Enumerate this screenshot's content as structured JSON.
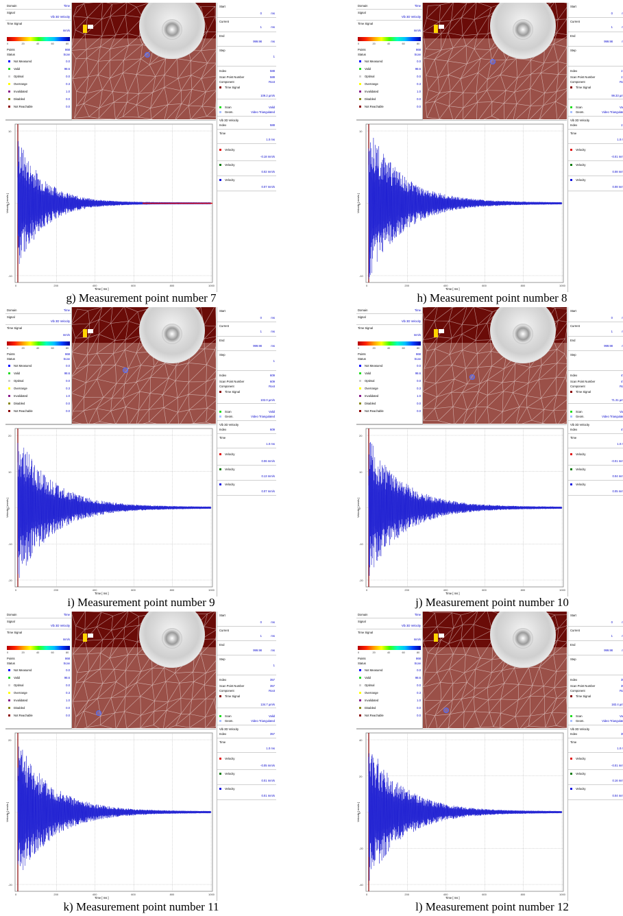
{
  "common": {
    "left": {
      "domain_label": "Domain",
      "domain_value": "Time",
      "signal_label": "Signal",
      "signal_value": "Vib 3D Velocity",
      "time_signal_label": "Time Signal",
      "unit": "mm/s",
      "colorbar_ticks": [
        "0",
        "20",
        "40",
        "60",
        "80"
      ],
      "points_label": "Points",
      "points_value": "868",
      "status_label": "Status",
      "status_value": "Scan",
      "status_rows": [
        {
          "label": "Not Measured",
          "value": "0.0",
          "color": "#0000ff"
        },
        {
          "label": "Valid",
          "value": "98.6",
          "color": "#22dd22"
        },
        {
          "label": "Optimal",
          "value": "0.0",
          "color": "#cccccc"
        },
        {
          "label": "Overrange",
          "value": "0.3",
          "color": "#ffff00"
        },
        {
          "label": "Invalidated",
          "value": "1.0",
          "color": "#8a1a8a"
        },
        {
          "label": "Disabled",
          "value": "0.0",
          "color": "#8a8a1a"
        },
        {
          "label": "Not Reachable",
          "value": "0.0",
          "color": "#8a0000"
        }
      ]
    },
    "side": {
      "start_label": "Start",
      "start_value": "0",
      "start_unit": "ms",
      "current_label": "Current",
      "current_value": "1",
      "current_unit": "ms",
      "end_label": "End",
      "end_value": "999.98",
      "end_unit": "ms",
      "step_label": "Step",
      "step_value": "1",
      "index_label": "Index",
      "scan_point_label": "Scan Point Number",
      "component_label": "Component",
      "component_value": "Root",
      "time_signal_label": "Time Signal",
      "scan_label": "Scan",
      "scan_value": "Valid",
      "geom_label": "Geom.",
      "geom_value": "Video Triangulated",
      "vib_label": "Vib 3D Velocity",
      "index2_label": "Index",
      "time_label": "Time",
      "time_value": "1.0 ms",
      "velocity_label": "Velocity"
    },
    "plot": {
      "ylabel": "Velocity [ mm/s ]",
      "xlabel": "Time [ ms ]",
      "xticks": [
        "0",
        "200",
        "400",
        "600",
        "800",
        "1000"
      ]
    }
  },
  "panels": [
    {
      "caption": "g) Measurement point number 7",
      "index": "588",
      "signal": "109.2 µm/s",
      "velocities": [
        "-0.18 mm/s",
        "0.02 mm/s",
        "0.07 mm/s"
      ],
      "yticks": [
        "10",
        "0",
        "-10"
      ]
    },
    {
      "caption": "h) Measurement point number 8",
      "index": "174",
      "signal": "99.33 µm/s",
      "velocities": [
        "-0.01 mm/s",
        "0.08 mm/s",
        "0.08 mm/s"
      ],
      "yticks": [
        "10",
        "0",
        "-10"
      ]
    },
    {
      "caption": "i) Measurement point number 9",
      "index": "609",
      "signal": "102.0 µm/s",
      "velocities": [
        "0.06 mm/s",
        "0.13 mm/s",
        "0.07 mm/s"
      ],
      "yticks": [
        "20",
        "10",
        "0",
        "-10",
        "-20"
      ]
    },
    {
      "caption": "j) Measurement point number 10",
      "index": "474",
      "signal": "71.31 µm/s",
      "velocities": [
        "-0.01 mm/s",
        "0.04 mm/s",
        "0.05 mm/s"
      ],
      "yticks": [
        "20",
        "10",
        "0",
        "-10",
        "-20"
      ]
    },
    {
      "caption": "k) Measurement point number 11",
      "index": "357",
      "signal": "134.7 µm/s",
      "velocities": [
        "-0.05 mm/s",
        "0.01 mm/s",
        "0.01 mm/s"
      ],
      "yticks": [
        "20",
        "0",
        "-20"
      ]
    },
    {
      "caption": "l) Measurement point number 12",
      "index": "356",
      "signal": "182.4 µm/s",
      "velocities": [
        "-0.01 mm/s",
        "0.16 mm/s",
        "0.04 mm/s"
      ],
      "yticks": [
        "40",
        "20",
        "0",
        "-20",
        "-40"
      ]
    }
  ],
  "colors": {
    "velocity": [
      "#e01010",
      "#0a7a0a",
      "#1010e0"
    ],
    "trace_main": "#1a1ad0",
    "trace_light": "#a0a8f0",
    "time_signal": "#8a0000"
  }
}
